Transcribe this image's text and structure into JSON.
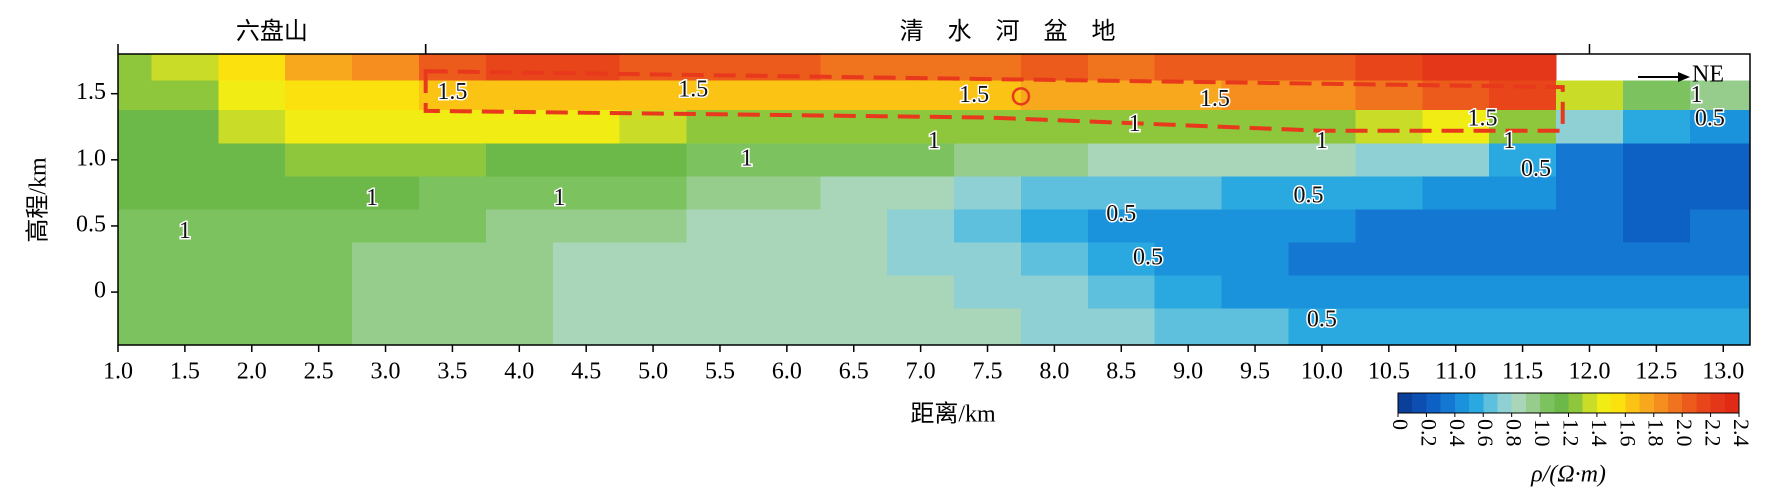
{
  "chart_data": {
    "type": "contour",
    "xlabel": "距离/km",
    "ylabel": "高程/km",
    "xlim": [
      1.0,
      13.2
    ],
    "ylim": [
      -0.4,
      1.8
    ],
    "xticks": [
      {
        "value": 1.0,
        "label": "1.0"
      },
      1.5,
      {
        "value": 2.0,
        "label": "2.0"
      },
      2.5,
      {
        "value": 3.0,
        "label": "3.0"
      },
      3.5,
      {
        "value": 4.0,
        "label": "4.0"
      },
      4.5,
      {
        "value": 5.0,
        "label": "5.0"
      },
      5.5,
      {
        "value": 6.0,
        "label": "6.0"
      },
      6.5,
      {
        "value": 7.0,
        "label": "7.0"
      },
      7.5,
      {
        "value": 8.0,
        "label": "8.0"
      },
      8.5,
      {
        "value": 9.0,
        "label": "9.0"
      },
      9.5,
      {
        "value": 10.0,
        "label": "10.0"
      },
      10.5,
      {
        "value": 11.0,
        "label": "11.0"
      },
      11.5,
      {
        "value": 12.0,
        "label": "12.0"
      },
      12.5,
      {
        "value": 13.0,
        "label": "13.0"
      }
    ],
    "yticks": [
      0,
      0.5,
      {
        "value": 1.0,
        "label": "1.0"
      },
      1.5
    ],
    "regions": [
      {
        "label": "六盘山",
        "from": 1.0,
        "to": 3.3
      },
      {
        "label": "清　水　河　盆　地",
        "from": 3.3,
        "to": 12.0
      }
    ],
    "direction": "NE",
    "x": [
      1.0,
      1.5,
      2.0,
      2.5,
      3.0,
      3.5,
      4.0,
      4.5,
      5.0,
      5.5,
      6.0,
      6.5,
      7.0,
      7.5,
      8.0,
      8.5,
      9.0,
      9.5,
      10.0,
      10.5,
      11.0,
      11.5,
      12.0,
      12.5,
      13.0
    ],
    "y": [
      1.7,
      1.5,
      1.25,
      1.0,
      0.75,
      0.5,
      0.25,
      0,
      -0.25
    ],
    "z": [
      [
        1.2,
        1.3,
        1.5,
        1.7,
        1.8,
        2.0,
        2.1,
        2.1,
        2.0,
        2.0,
        2.0,
        1.9,
        1.9,
        1.9,
        2.0,
        1.9,
        2.0,
        2.0,
        2.0,
        2.1,
        2.2,
        2.2,
        null,
        null,
        null
      ],
      [
        1.2,
        1.2,
        1.4,
        1.5,
        1.5,
        1.6,
        1.6,
        1.6,
        1.6,
        1.6,
        1.6,
        1.6,
        1.6,
        1.6,
        1.7,
        1.7,
        1.7,
        1.8,
        1.8,
        1.9,
        2.0,
        2.1,
        1.3,
        1.0,
        0.9
      ],
      [
        1.1,
        1.1,
        1.3,
        1.4,
        1.4,
        1.4,
        1.4,
        1.4,
        1.3,
        1.2,
        1.2,
        1.2,
        1.2,
        1.2,
        1.2,
        1.2,
        1.2,
        1.2,
        1.2,
        1.3,
        1.4,
        1.2,
        0.7,
        0.5,
        0.4
      ],
      [
        1.1,
        1.1,
        1.1,
        1.2,
        1.2,
        1.2,
        1.1,
        1.1,
        1.1,
        1.0,
        1.0,
        1.0,
        1.0,
        0.9,
        0.9,
        0.8,
        0.8,
        0.8,
        0.8,
        0.7,
        0.7,
        0.5,
        0.3,
        0.2,
        0.2
      ],
      [
        1.1,
        1.1,
        1.1,
        1.1,
        1.1,
        1.0,
        1.0,
        1.0,
        1.0,
        0.9,
        0.9,
        0.8,
        0.8,
        0.7,
        0.6,
        0.6,
        0.6,
        0.5,
        0.5,
        0.5,
        0.4,
        0.4,
        0.3,
        0.2,
        0.2
      ],
      [
        1.0,
        1.0,
        1.0,
        1.0,
        1.0,
        1.0,
        0.9,
        0.9,
        0.9,
        0.8,
        0.8,
        0.8,
        0.7,
        0.6,
        0.5,
        0.4,
        0.4,
        0.4,
        0.4,
        0.3,
        0.3,
        0.3,
        0.3,
        0.2,
        0.3
      ],
      [
        1.0,
        1.0,
        1.0,
        1.0,
        0.9,
        0.9,
        0.9,
        0.8,
        0.8,
        0.8,
        0.8,
        0.8,
        0.7,
        0.7,
        0.6,
        0.5,
        0.4,
        0.4,
        0.3,
        0.3,
        0.3,
        0.3,
        0.3,
        0.3,
        0.3
      ],
      [
        1.0,
        1.0,
        1.0,
        1.0,
        0.9,
        0.9,
        0.9,
        0.8,
        0.8,
        0.8,
        0.8,
        0.8,
        0.8,
        0.7,
        0.7,
        0.6,
        0.5,
        0.4,
        0.4,
        0.4,
        0.4,
        0.4,
        0.4,
        0.4,
        0.4
      ],
      [
        1.0,
        1.0,
        1.0,
        1.0,
        0.9,
        0.9,
        0.9,
        0.8,
        0.8,
        0.8,
        0.8,
        0.8,
        0.8,
        0.8,
        0.7,
        0.7,
        0.6,
        0.6,
        0.5,
        0.5,
        0.5,
        0.5,
        0.5,
        0.5,
        0.5
      ]
    ],
    "contour_labels": [
      {
        "value": 1.5,
        "x": 3.5,
        "y": 1.5
      },
      {
        "value": 1.5,
        "x": 5.3,
        "y": 1.52
      },
      {
        "value": 1.5,
        "x": 7.4,
        "y": 1.48
      },
      {
        "value": 1.5,
        "x": 9.2,
        "y": 1.45
      },
      {
        "value": 1.5,
        "x": 11.2,
        "y": 1.3
      },
      {
        "value": 1,
        "x": 1.5,
        "y": 0.45
      },
      {
        "value": 1,
        "x": 2.9,
        "y": 0.7
      },
      {
        "value": 1,
        "x": 4.3,
        "y": 0.7
      },
      {
        "value": 1,
        "x": 5.7,
        "y": 1.0
      },
      {
        "value": 1,
        "x": 7.1,
        "y": 1.13
      },
      {
        "value": 1,
        "x": 8.6,
        "y": 1.26
      },
      {
        "value": 1,
        "x": 10.0,
        "y": 1.13
      },
      {
        "value": 1,
        "x": 11.4,
        "y": 1.13
      },
      {
        "value": 1,
        "x": 12.8,
        "y": 1.48
      },
      {
        "value": 0.5,
        "x": 8.5,
        "y": 0.58
      },
      {
        "value": 0.5,
        "x": 8.7,
        "y": 0.25
      },
      {
        "value": 0.5,
        "x": 9.9,
        "y": 0.72
      },
      {
        "value": 0.5,
        "x": 10.0,
        "y": -0.22
      },
      {
        "value": 0.5,
        "x": 11.6,
        "y": 0.92
      },
      {
        "value": 0.5,
        "x": 12.9,
        "y": 1.3
      }
    ],
    "outline": [
      [
        3.3,
        1.67
      ],
      [
        11.8,
        1.55
      ],
      [
        11.8,
        1.22
      ],
      [
        10.0,
        1.22
      ],
      [
        7.5,
        1.32
      ],
      [
        3.3,
        1.37
      ]
    ],
    "outline_color": "#e8391c",
    "marker": [
      7.75,
      1.48
    ],
    "colorbar": {
      "label": "ρ/(Ω·m)",
      "step": 0.1,
      "ticks": [
        0,
        0.2,
        0.4,
        0.6,
        0.8,
        {
          "value": 1.0,
          "label": "1.0"
        },
        1.2,
        1.4,
        1.6,
        1.8,
        {
          "value": 2.0,
          "label": "2.0"
        },
        2.2,
        2.4
      ],
      "colors": [
        "#0a3f9a",
        "#0d4fb0",
        "#0e61c4",
        "#1478d2",
        "#1a93dc",
        "#2aa8e0",
        "#5ec0dc",
        "#8ed0d4",
        "#a9d6b8",
        "#96cc8c",
        "#7cc25e",
        "#6cb848",
        "#8ec63c",
        "#c8dc28",
        "#f0ec14",
        "#fbe20e",
        "#fbc414",
        "#f8a81c",
        "#f58e1e",
        "#f0741e",
        "#ec5a1c",
        "#e8461a",
        "#e43618",
        "#e02a16"
      ]
    }
  }
}
